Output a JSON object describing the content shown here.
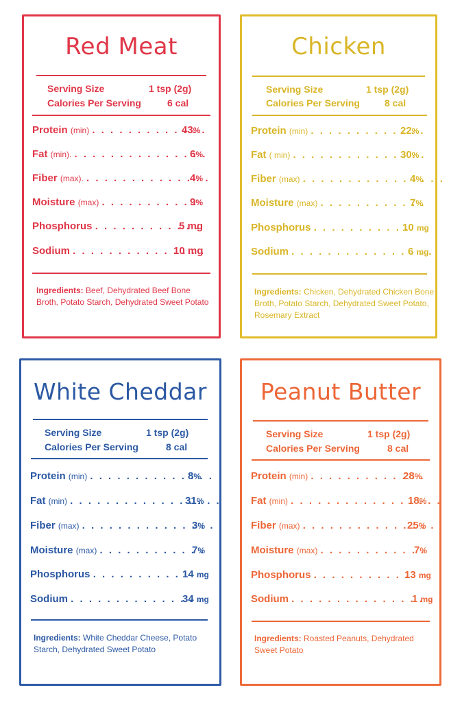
{
  "cards": [
    {
      "title": "Red Meat",
      "color": "#e03748",
      "serving_size_label": "Serving Size",
      "serving_size_value": "1 tsp (2g)",
      "calories_label": "Calories Per Serving",
      "calories_value": "6 cal",
      "nutrients": [
        {
          "name": "Protein",
          "qualifier": "(min)",
          "dots": ". . . . . . . . . . . . .",
          "value": "43",
          "unit": "%"
        },
        {
          "name": "Fat",
          "qualifier": "(min).",
          "dots": ". . . . . . . . . . . . . . .",
          "value": "6",
          "unit": "%"
        },
        {
          "name": "Fiber",
          "qualifier": "(max).",
          "dots": ". . . . . . . . . . . . . .",
          "value": "4",
          "unit": "%"
        },
        {
          "name": "Moisture",
          "qualifier": "(max)",
          "dots": ". . . . . . . . . . .",
          "value": "9",
          "unit": "%"
        },
        {
          "name": "Phosphorus",
          "qualifier": "",
          "dots": ". . . . . . . . . . . .",
          "value": "5 mg",
          "unit": ""
        },
        {
          "name": "Sodium",
          "qualifier": "",
          "dots": ". . . . . . . . . . . . . . .",
          "value": "10 mg",
          "unit": ""
        }
      ],
      "ingredients_label": "Ingredients:",
      "ingredients_text": "Beef, Dehydrated Beef Bone Broth, Potato Starch, Dehydrated Sweet Potato"
    },
    {
      "title": "Chicken",
      "color": "#d9b628",
      "serving_size_label": "Serving Size",
      "serving_size_value": "1 tsp (2g)",
      "calories_label": "Calories Per Serving",
      "calories_value": "8 cal",
      "nutrients": [
        {
          "name": "Protein",
          "qualifier": "(min)",
          "dots": ". . . . . . . . . . . . .",
          "value": "22",
          "unit": "%"
        },
        {
          "name": "Fat",
          "qualifier": "( min)",
          "dots": ". . . . . . . . . . . . . . .",
          "value": "30",
          "unit": "%"
        },
        {
          "name": "Fiber",
          "qualifier": "(max)",
          "dots": ". . . . . . . . . . . . . . . .",
          "value": "4",
          "unit": "%"
        },
        {
          "name": "Moisture",
          "qualifier": "(max)",
          "dots": ". . . . . . . . . . . .",
          "value": "7",
          "unit": "%"
        },
        {
          "name": "Phosphorus",
          "qualifier": "",
          "dots": ". . . . . . . . . . .",
          "value": "10",
          "unit": "mg"
        },
        {
          "name": "Sodium",
          "qualifier": "",
          "dots": ". . . . . . . . . . . . . . . .",
          "value": "6",
          "unit": "mg"
        }
      ],
      "ingredients_label": "Ingredients:",
      "ingredients_text": "Chicken, Dehydrated Chicken Bone Broth, Potato Starch, Dehydrated Sweet Potato, Rosemary Extract"
    },
    {
      "title": "White Cheddar",
      "color": "#2b58a3",
      "serving_size_label": "Serving Size",
      "serving_size_value": "1 tsp (2g)",
      "calories_label": "Calories Per Serving",
      "calories_value": "8 cal",
      "nutrients": [
        {
          "name": "Protein",
          "qualifier": "(min)",
          "dots": ". . . . . . . . . . . . . .",
          "value": "8",
          "unit": "%"
        },
        {
          "name": "Fat",
          "qualifier": "(min)",
          "dots": ". . . . . . . . . . . . . . . . .",
          "value": "31",
          "unit": "%"
        },
        {
          "name": "Fiber",
          "qualifier": "(max)",
          "dots": ". . . . . . . . . . . . . . .",
          "value": "3",
          "unit": "%"
        },
        {
          "name": "Moisture",
          "qualifier": "(max)",
          "dots": ". . . . . . . . . . . .",
          "value": "7",
          "unit": "%"
        },
        {
          "name": "Phosphorus",
          "qualifier": "",
          "dots": ". . . . . . . . . . .",
          "value": "14",
          "unit": "mg"
        },
        {
          "name": "Sodium",
          "qualifier": "",
          "dots": ". . . . . . . . . . . . . . .",
          "value": "34",
          "unit": "mg"
        }
      ],
      "ingredients_label": "Ingredients:",
      "ingredients_text": "White Cheddar Cheese, Potato Starch, Dehydrated Sweet Potato"
    },
    {
      "title": "Peanut Butter",
      "color": "#ec6637",
      "serving_size_label": "Serving Size",
      "serving_size_value": "1 tsp (2g)",
      "calories_label": "Calories Per Serving",
      "calories_value": "8 cal",
      "nutrients": [
        {
          "name": "Protein",
          "qualifier": "(min)",
          "dots": ". . . . . . . . . . . . .",
          "value": "28",
          "unit": "%"
        },
        {
          "name": "Fat",
          "qualifier": "(min)",
          "dots": ". . . . . . . . . . . . . . . . .",
          "value": "18",
          "unit": "%"
        },
        {
          "name": "Fiber",
          "qualifier": "(max)",
          "dots": ". . . . . . . . . . . . . . .",
          "value": "25",
          "unit": "%"
        },
        {
          "name": "Moisture",
          "qualifier": "(max)",
          "dots": ". . . . . . . . . . . .",
          "value": "7",
          "unit": "%"
        },
        {
          "name": "Phosphorus",
          "qualifier": "",
          "dots": ". . . . . . . . . . .",
          "value": "13",
          "unit": "mg"
        },
        {
          "name": "Sodium",
          "qualifier": "",
          "dots": ". . . . . . . . . . . . . . . .",
          "value": "1",
          "unit": "mg"
        }
      ],
      "ingredients_label": "Ingredients:",
      "ingredients_text": "Roasted Peanuts, Dehydrated Sweet Potato"
    }
  ]
}
